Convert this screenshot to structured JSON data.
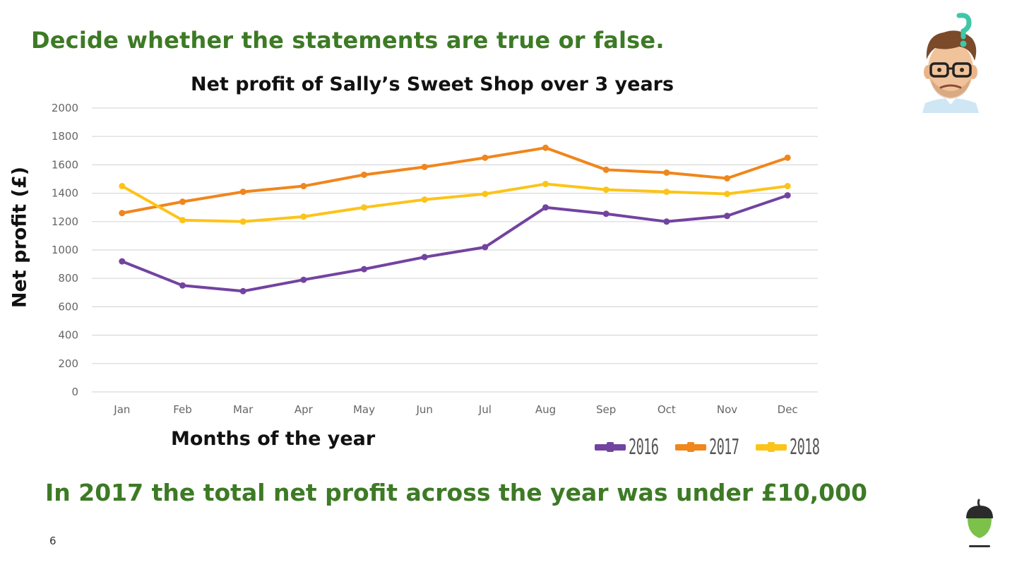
{
  "slide": {
    "instruction": "Decide whether the statements are true or false.",
    "statement": "In 2017 the total net profit across the year was under £10,000",
    "page_number": "6"
  },
  "icons": {
    "avatar": "thinking-teacher-avatar-icon",
    "logo": "acorn-logo-icon"
  },
  "chart_data": {
    "type": "line",
    "title": "Net profit of Sally’s Sweet Shop over 3 years",
    "xlabel": "Months of the year",
    "ylabel": "Net profit (£)",
    "ylim": [
      0,
      2000
    ],
    "yticks": [
      "0",
      "200",
      "400",
      "600",
      "800",
      "1000",
      "1200",
      "1400",
      "1600",
      "1800",
      "2000"
    ],
    "grid": true,
    "legend_position": "bottom-right",
    "categories": [
      "Jan",
      "Feb",
      "Mar",
      "Apr",
      "May",
      "Jun",
      "Jul",
      "Aug",
      "Sep",
      "Oct",
      "Nov",
      "Dec"
    ],
    "series": [
      {
        "name": "2016",
        "color": "#7243a0",
        "values": [
          920,
          750,
          710,
          790,
          865,
          950,
          1020,
          1300,
          1255,
          1200,
          1240,
          1385
        ]
      },
      {
        "name": "2017",
        "color": "#f0861c",
        "values": [
          1260,
          1340,
          1410,
          1450,
          1530,
          1585,
          1650,
          1720,
          1565,
          1545,
          1505,
          1650
        ]
      },
      {
        "name": "2018",
        "color": "#fcc419",
        "values": [
          1450,
          1210,
          1200,
          1235,
          1300,
          1355,
          1395,
          1465,
          1425,
          1410,
          1395,
          1450
        ]
      }
    ]
  }
}
